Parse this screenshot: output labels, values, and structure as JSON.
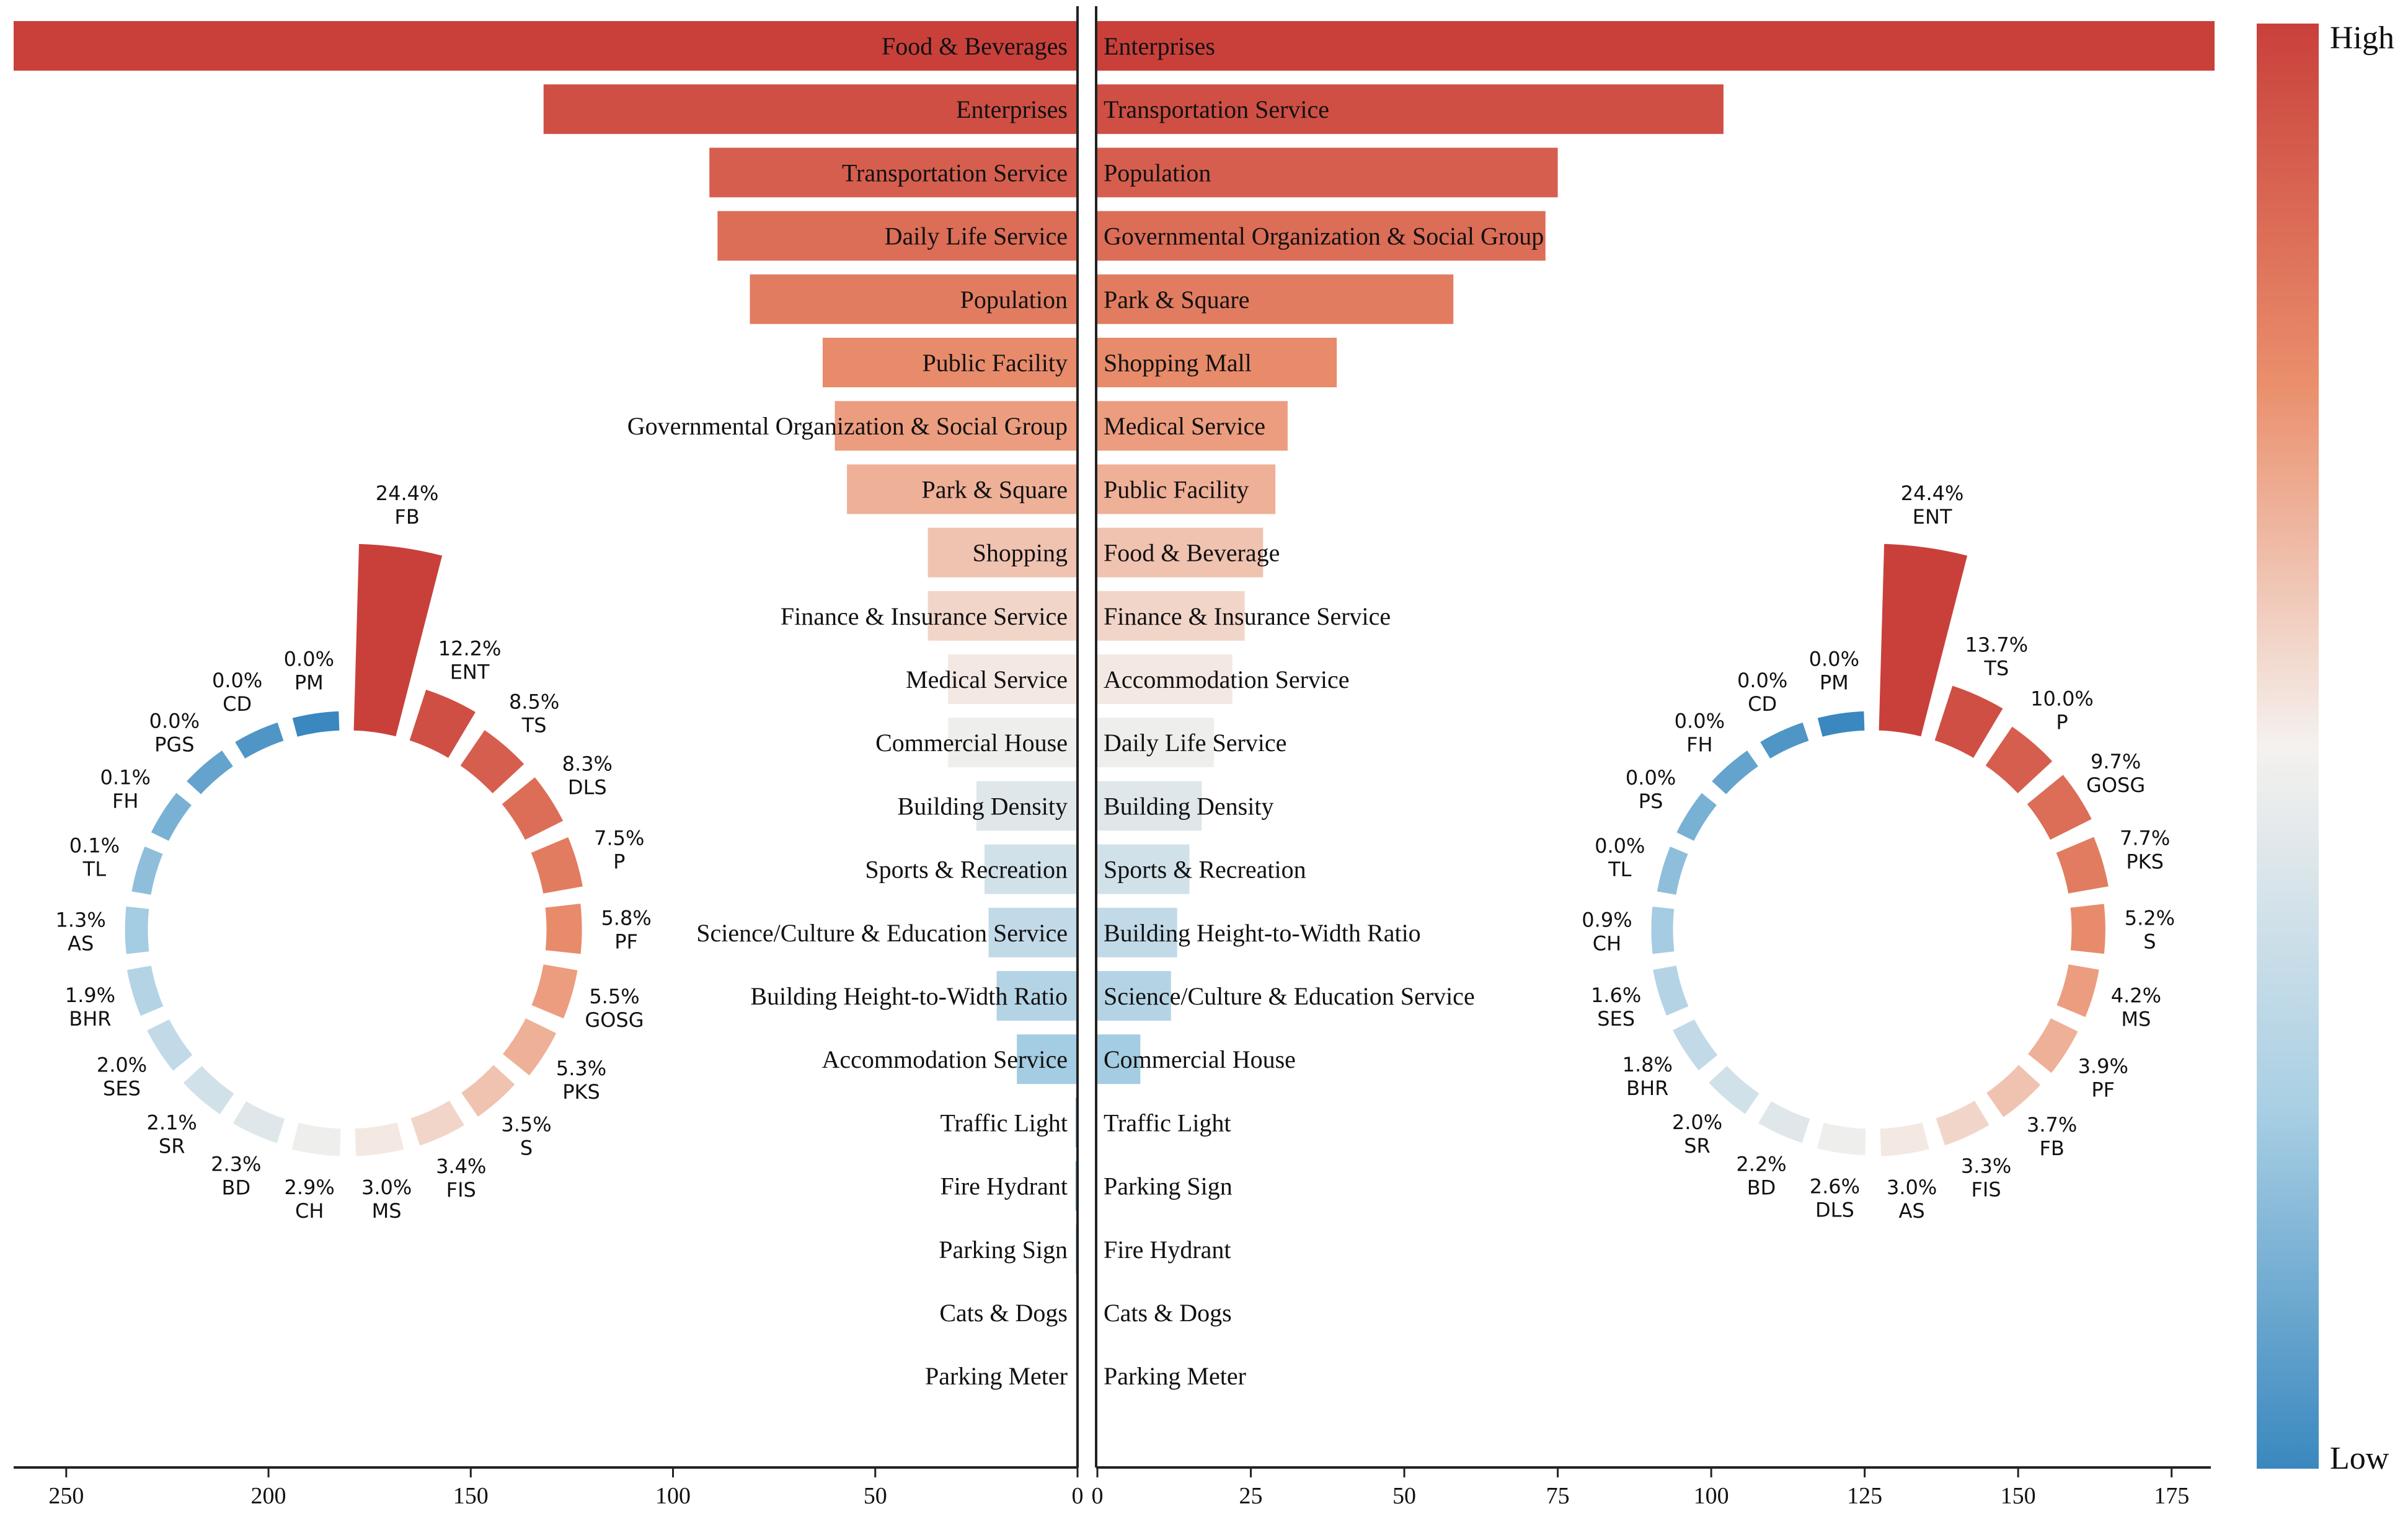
{
  "chart_data": [
    {
      "type": "bar",
      "orientation": "horizontal-mirrored",
      "panel": "left",
      "categories": [
        "Food & Beverages",
        "Enterprises",
        "Transportation Service",
        "Daily Life Service",
        "Population",
        "Public Facility",
        "Governmental Organization & Social Group",
        "Park & Square",
        "Shopping",
        "Finance & Insurance Service",
        "Medical Service",
        "Commercial House",
        "Building Density",
        "Sports & Recreation",
        "Science/Culture & Education Service",
        "Building Height-to-Width Ratio",
        "Accommodation Service",
        "Traffic Light",
        "Fire Hydrant",
        "Parking Sign",
        "Cats & Dogs",
        "Parking Meter"
      ],
      "values": [
        263,
        132,
        91,
        89,
        81,
        63,
        60,
        57,
        37,
        37,
        32,
        32,
        25,
        23,
        22,
        20,
        15,
        0.5,
        0.5,
        0.4,
        0,
        0
      ],
      "xlim": [
        0,
        263
      ],
      "xticks": [
        250,
        200,
        150,
        100,
        50,
        0
      ]
    },
    {
      "type": "bar",
      "orientation": "horizontal",
      "panel": "right",
      "categories": [
        "Enterprises",
        "Transportation Service",
        "Population",
        "Governmental Organization & Social Group",
        "Park & Square",
        "Shopping Mall",
        "Medical Service",
        "Public Facility",
        "Food & Beverage",
        "Finance & Insurance Service",
        "Accommodation Service",
        "Daily Life Service",
        "Building Density",
        "Sports & Recreation",
        "Building Height-to-Width Ratio",
        "Science/Culture & Education Service",
        "Commercial House",
        "Traffic Light",
        "Parking Sign",
        "Fire Hydrant",
        "Cats & Dogs",
        "Parking Meter"
      ],
      "values": [
        182,
        102,
        75,
        73,
        58,
        39,
        31,
        29,
        27,
        24,
        22,
        19,
        17,
        15,
        13,
        12,
        7,
        0,
        0,
        0,
        0,
        0
      ],
      "xlim": [
        0,
        182
      ],
      "xticks": [
        0,
        25,
        50,
        75,
        100,
        125,
        150,
        175
      ]
    },
    {
      "type": "polar-bar",
      "panel": "left-circular",
      "labels": [
        "FB",
        "ENT",
        "TS",
        "DLS",
        "P",
        "PF",
        "GOSG",
        "PKS",
        "S",
        "FIS",
        "MS",
        "CH",
        "BD",
        "SR",
        "SES",
        "BHR",
        "AS",
        "TL",
        "FH",
        "PGS",
        "CD",
        "PM"
      ],
      "percents": [
        "24.4%",
        "12.2%",
        "8.5%",
        "8.3%",
        "7.5%",
        "5.8%",
        "5.5%",
        "5.3%",
        "3.5%",
        "3.4%",
        "3.0%",
        "2.9%",
        "2.3%",
        "2.1%",
        "2.0%",
        "1.9%",
        "1.3%",
        "0.1%",
        "0.1%",
        "0.0%",
        "0.0%",
        "0.0%"
      ],
      "values": [
        24.4,
        12.2,
        8.5,
        8.3,
        7.5,
        5.8,
        5.5,
        5.3,
        3.5,
        3.4,
        3.0,
        2.9,
        2.3,
        2.1,
        2.0,
        1.9,
        1.3,
        0.1,
        0.1,
        0.0,
        0.0,
        0.0
      ]
    },
    {
      "type": "polar-bar",
      "panel": "right-circular",
      "labels": [
        "ENT",
        "TS",
        "P",
        "GOSG",
        "PKS",
        "S",
        "MS",
        "PF",
        "FB",
        "FIS",
        "AS",
        "DLS",
        "BD",
        "SR",
        "BHR",
        "SES",
        "CH",
        "TL",
        "PS",
        "FH",
        "CD",
        "PM"
      ],
      "percents": [
        "24.4%",
        "13.7%",
        "10.0%",
        "9.7%",
        "7.7%",
        "5.2%",
        "4.2%",
        "3.9%",
        "3.7%",
        "3.3%",
        "3.0%",
        "2.6%",
        "2.2%",
        "2.0%",
        "1.8%",
        "1.6%",
        "0.9%",
        "0.0%",
        "0.0%",
        "0.0%",
        "0.0%",
        "0.0%"
      ],
      "values": [
        24.4,
        13.7,
        10.0,
        9.7,
        7.7,
        5.2,
        4.2,
        3.9,
        3.7,
        3.3,
        3.0,
        2.6,
        2.2,
        2.0,
        1.8,
        1.6,
        0.9,
        0.0,
        0.0,
        0.0,
        0.0,
        0.0
      ]
    }
  ],
  "colorbar": {
    "high_label": "High",
    "low_label": "Low",
    "high_color": "#c9403b",
    "mid_color": "#f5f2f0",
    "low_color": "#3a88bf"
  }
}
